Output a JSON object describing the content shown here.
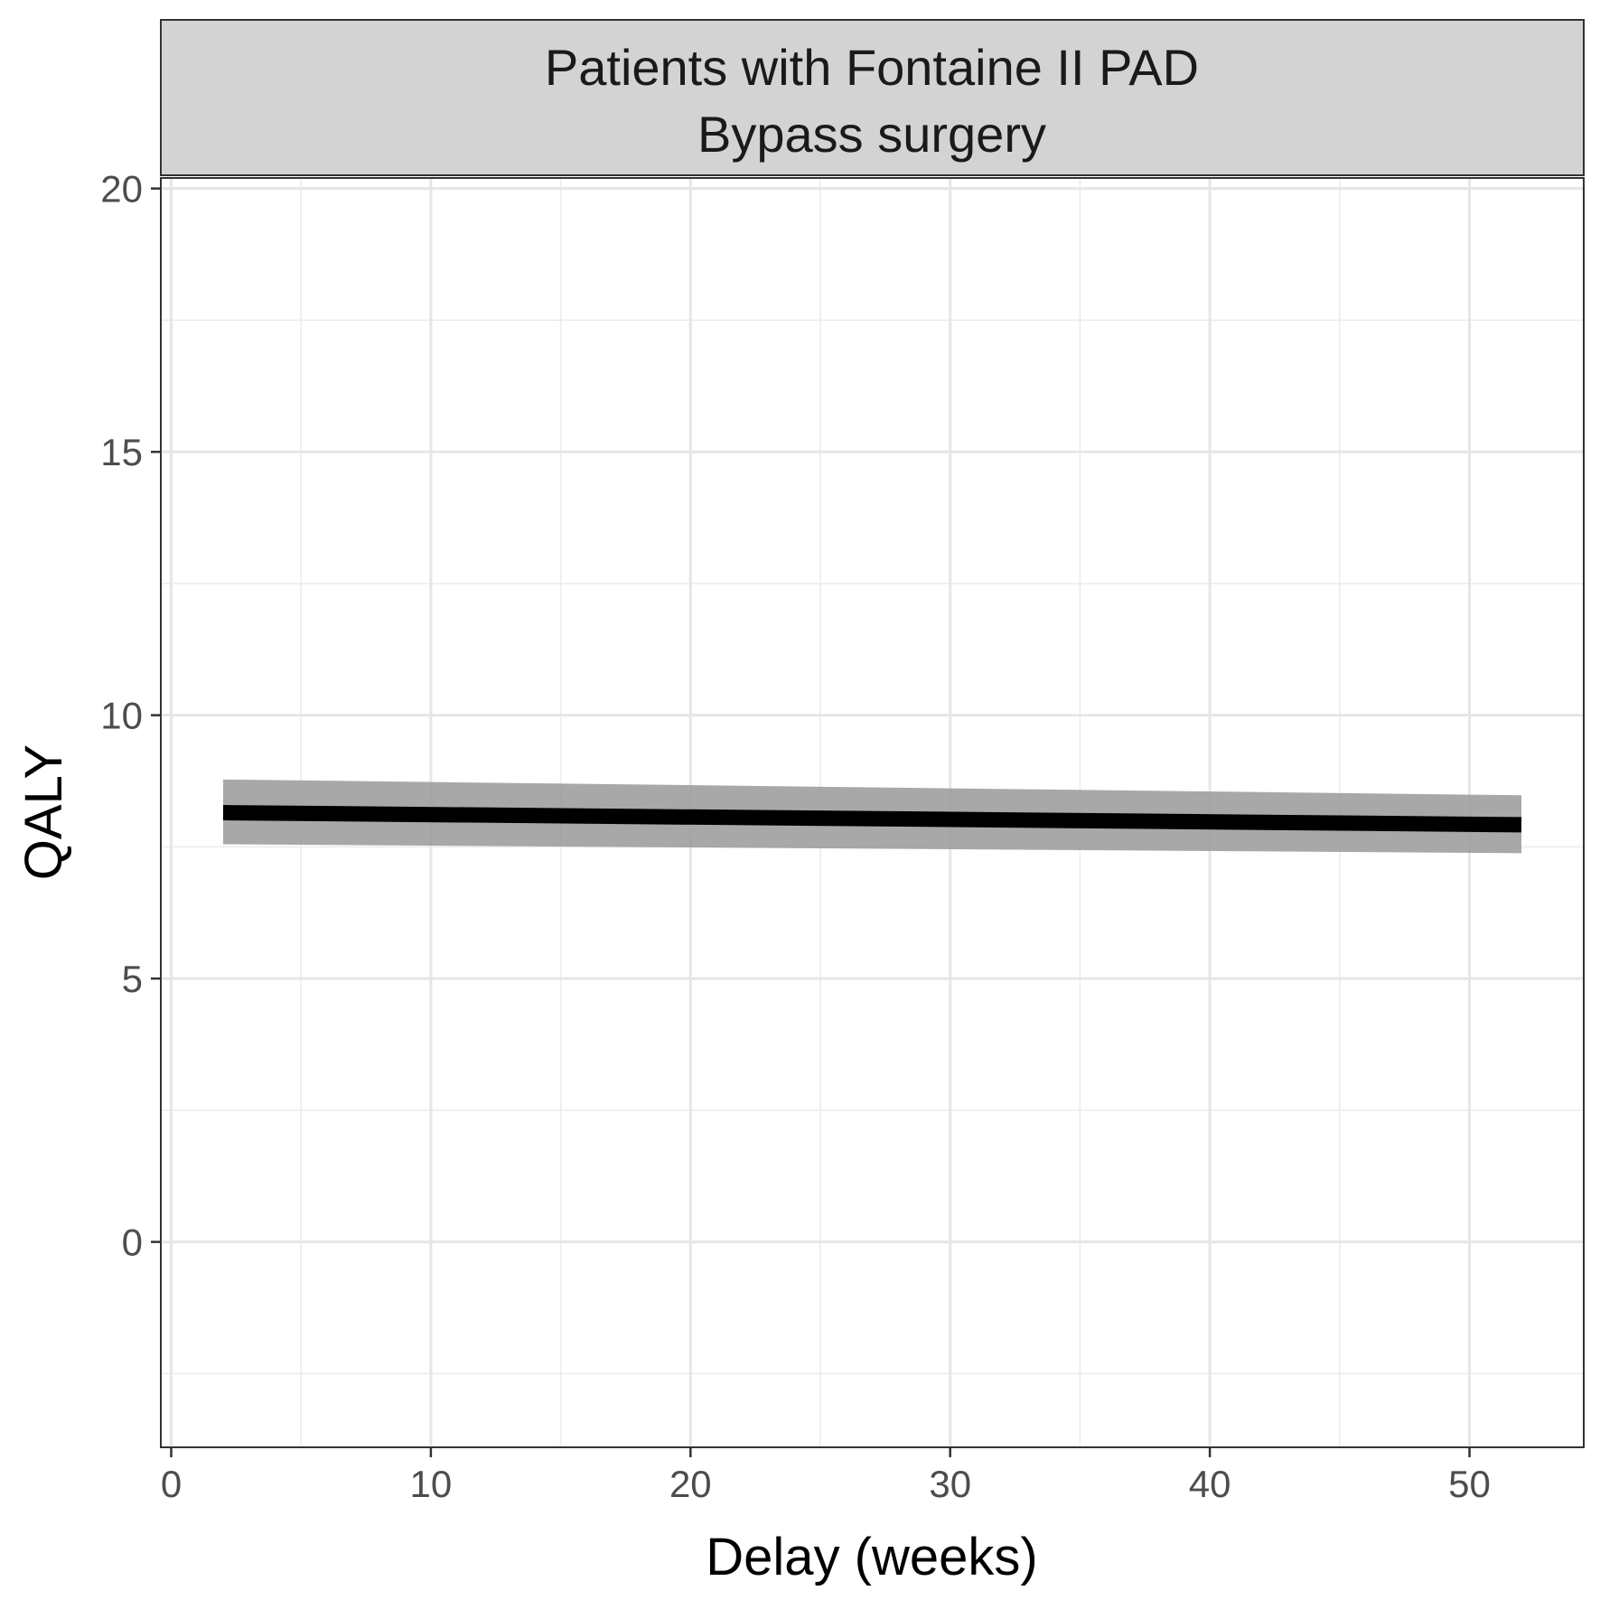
{
  "chart_data": {
    "type": "line",
    "facet_strip": [
      "Patients with Fontaine II PAD",
      "Bypass surgery"
    ],
    "xlabel": "Delay (weeks)",
    "ylabel": "QALY",
    "xlim": [
      -0.4,
      54.4
    ],
    "ylim": [
      -3.9,
      20.2
    ],
    "x_ticks": [
      0,
      10,
      20,
      30,
      40,
      50
    ],
    "x_tick_labels": [
      "0",
      "10",
      "20",
      "30",
      "40",
      "50"
    ],
    "y_ticks": [
      0,
      5,
      10,
      15,
      20
    ],
    "y_tick_labels": [
      "0",
      "5",
      "10",
      "15",
      "20"
    ],
    "x_minor": [
      5,
      15,
      25,
      35,
      45
    ],
    "y_minor": [
      -2.5,
      2.5,
      7.5,
      12.5,
      17.5
    ],
    "grid": true,
    "legend": "none",
    "series": [
      {
        "x": [
          2,
          52
        ],
        "y": [
          8.15,
          7.92
        ],
        "ci_lower": [
          7.55,
          7.38
        ],
        "ci_upper": [
          8.78,
          8.48
        ],
        "line_color": "#000000",
        "ribbon_color": "#999999"
      }
    ]
  }
}
